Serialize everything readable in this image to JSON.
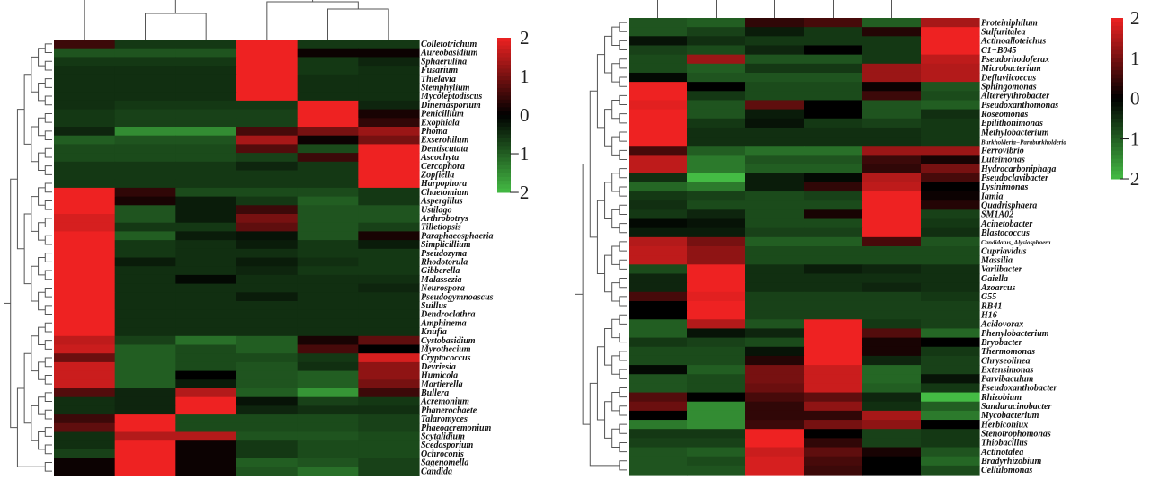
{
  "chart_data": [
    {
      "type": "heatmap",
      "title": "",
      "colorscale": {
        "min": -2,
        "max": 2,
        "low": "#44bb44",
        "mid": "#000000",
        "high": "#ee2222",
        "ticks": [
          "2",
          "1",
          "0",
          "−1",
          "−2"
        ]
      },
      "n_columns": 6,
      "rows": [
        "Colletotrichum",
        "Aureobasidium",
        "Sphaerulina",
        "Fusarium",
        "Thielavia",
        "Stemphylium",
        "Mycoleptodiscus",
        "Dinemasporium",
        "Penicillium",
        "Exophiala",
        "Phoma",
        "Exserohilum",
        "Dentiscutata",
        "Ascochyta",
        "Cercophora",
        "Zopfiella",
        "Harpophora",
        "Chaetomium",
        "Aspergillus",
        "Ustilago",
        "Arthrobotrys",
        "Tilletiopsis",
        "Paraphaeosphaeria",
        "Simplicillium",
        "Pseudozyma",
        "Rhodotorula",
        "Gibberella",
        "Malassezia",
        "Neurospora",
        "Pseudogymnoascus",
        "Suillus",
        "Dendroclathra",
        "Amphinema",
        "Knufia",
        "Cystobasidium",
        "Myrothecium",
        "Cryptococcus",
        "Devriesia",
        "Humicola",
        "Mortierella",
        "Bullera",
        "Acremonium",
        "Phanerochaete",
        "Talaromyces",
        "Phaeoacremonium",
        "Scytalidium",
        "Scedosporium",
        "Ochroconis",
        "Sagenomella",
        "Candida"
      ],
      "values": [
        [
          0.5,
          -0.6,
          -0.6,
          2,
          -0.6,
          -0.6
        ],
        [
          -0.9,
          -0.9,
          -0.9,
          2,
          0.1,
          0.1
        ],
        [
          -0.6,
          -0.6,
          -0.6,
          2,
          -0.6,
          -0.4
        ],
        [
          -0.5,
          -0.5,
          -0.5,
          2,
          -0.6,
          -0.5
        ],
        [
          -0.5,
          -0.5,
          -0.5,
          2,
          -0.5,
          -0.5
        ],
        [
          -0.5,
          -0.5,
          -0.5,
          2,
          -0.5,
          -0.5
        ],
        [
          -0.5,
          -0.5,
          -0.5,
          2,
          -0.5,
          -0.5
        ],
        [
          -0.5,
          -0.6,
          -0.6,
          -0.6,
          2,
          -0.4
        ],
        [
          -0.6,
          -0.7,
          -0.7,
          -0.7,
          2,
          0.2
        ],
        [
          -0.6,
          -0.7,
          -0.7,
          -0.7,
          2,
          0.4
        ],
        [
          -0.4,
          -1.5,
          -1.5,
          0.6,
          1.0,
          1.3
        ],
        [
          -1.0,
          -0.9,
          -0.9,
          1.4,
          0.1,
          1.0
        ],
        [
          -0.8,
          -0.8,
          -0.8,
          0.7,
          -0.8,
          2
        ],
        [
          -0.8,
          -0.8,
          -0.8,
          -0.7,
          0.5,
          2
        ],
        [
          -0.6,
          -0.6,
          -0.6,
          -0.4,
          -0.6,
          2
        ],
        [
          -0.6,
          -0.6,
          -0.6,
          -0.6,
          -0.6,
          2
        ],
        [
          -0.6,
          -0.6,
          -0.6,
          -0.6,
          -0.6,
          2
        ],
        [
          2,
          0.4,
          -0.8,
          -0.8,
          -0.8,
          -0.6
        ],
        [
          2,
          0.2,
          -0.3,
          -0.6,
          -1.0,
          -0.6
        ],
        [
          2,
          -0.9,
          -0.3,
          0.5,
          -0.9,
          -0.9
        ],
        [
          1.8,
          -0.9,
          -0.3,
          1.0,
          -0.9,
          -0.9
        ],
        [
          1.8,
          -0.6,
          -0.6,
          0.8,
          -0.9,
          -0.7
        ],
        [
          2,
          -1.0,
          -0.3,
          -0.2,
          -0.9,
          0.2
        ],
        [
          2,
          -0.6,
          -0.5,
          -0.3,
          -0.6,
          -0.3
        ],
        [
          2,
          -0.6,
          -0.5,
          -0.5,
          -0.6,
          -0.6
        ],
        [
          2,
          -0.3,
          -0.5,
          -0.3,
          -0.5,
          -0.6
        ],
        [
          2,
          -0.5,
          -0.5,
          -0.4,
          -0.6,
          -0.6
        ],
        [
          2,
          -0.5,
          -0.1,
          -0.5,
          -0.5,
          -0.5
        ],
        [
          2,
          -0.5,
          -0.5,
          -0.5,
          -0.5,
          -0.4
        ],
        [
          2,
          -0.5,
          -0.5,
          -0.3,
          -0.5,
          -0.5
        ],
        [
          2,
          -0.5,
          -0.5,
          -0.5,
          -0.5,
          -0.5
        ],
        [
          2,
          -0.5,
          -0.5,
          -0.5,
          -0.5,
          -0.5
        ],
        [
          2,
          -0.5,
          -0.5,
          -0.5,
          -0.5,
          -0.5
        ],
        [
          2,
          -0.5,
          -0.5,
          -0.5,
          -0.5,
          -0.5
        ],
        [
          1.6,
          -0.7,
          -1.2,
          -1.0,
          0.2,
          0.8
        ],
        [
          1.7,
          -1.0,
          -0.8,
          -1.0,
          0.6,
          0.0
        ],
        [
          0.9,
          -1.0,
          -0.8,
          -0.8,
          -0.6,
          1.8
        ],
        [
          1.7,
          -1.0,
          -0.8,
          -0.9,
          -0.5,
          1.2
        ],
        [
          1.7,
          -1.0,
          0.0,
          -0.9,
          -1.0,
          1.2
        ],
        [
          1.7,
          -1.0,
          -0.3,
          -0.9,
          -1.0,
          1.0
        ],
        [
          0.7,
          -0.4,
          1.5,
          -1.0,
          -1.6,
          0.5
        ],
        [
          -0.5,
          -0.4,
          2,
          -0.2,
          -0.7,
          -0.6
        ],
        [
          -0.5,
          -0.4,
          2,
          -0.4,
          -0.5,
          -0.5
        ],
        [
          0.5,
          2,
          -0.8,
          -0.8,
          -0.8,
          -0.7
        ],
        [
          0.8,
          2,
          -0.8,
          -0.8,
          -0.8,
          -0.7
        ],
        [
          -0.5,
          1.5,
          1.5,
          -0.9,
          -0.9,
          -0.8
        ],
        [
          -0.5,
          2,
          0.1,
          -0.6,
          -0.8,
          -0.8
        ],
        [
          -0.7,
          2,
          0.1,
          -0.6,
          -0.8,
          -0.8
        ],
        [
          0.1,
          2,
          0.1,
          -1.0,
          -0.9,
          -0.7
        ],
        [
          0.1,
          2,
          0.1,
          -0.9,
          -1.2,
          -0.7
        ]
      ]
    },
    {
      "type": "heatmap",
      "title": "",
      "colorscale": {
        "min": -2,
        "max": 2,
        "low": "#44bb44",
        "mid": "#000000",
        "high": "#ee2222",
        "ticks": [
          "2",
          "1",
          "0",
          "−1",
          "−2"
        ]
      },
      "n_columns": 6,
      "rows": [
        "Proteiniphilum",
        "Sulfuritalea",
        "Actinoalloteichus",
        "C1−B045",
        "Pseudorhodoferax",
        "Microbacterium",
        "Defluviicoccus",
        "Sphingomonas",
        "Altererythrobacter",
        "Pseudoxanthomonas",
        "Roseomonas",
        "Epilithonimonas",
        "Methylobacterium",
        "Burkholderia−Paraburkholderia",
        "Ferrovibrio",
        "Luteimonas",
        "Hydrocarboniphaga",
        "Pseudoclavibacter",
        "Lysinimonas",
        "Iamia",
        "Quadrisphaera",
        "SM1A02",
        "Acinetobacter",
        "Blastococcus",
        "Candidatus_Alysiosphaera",
        "Cupriavidus",
        "Massilia",
        "Variibacter",
        "Gaiella",
        "Azoarcus",
        "G55",
        "RB41",
        "H16",
        "Acidovorax",
        "Phenylobacterium",
        "Bryobacter",
        "Thermomonas",
        "Chryseolinea",
        "Extensimonas",
        "Parvibaculum",
        "Pseudoxanthobacter",
        "Rhizobium",
        "Sandaracinobacter",
        "Mycobacterium",
        "Herbiconiux",
        "Stenotrophomonas",
        "Thiobacillus",
        "Actinotalea",
        "Bradyrhizobium",
        "Cellulomonas"
      ],
      "values": [
        [
          -0.9,
          -1.0,
          0.4,
          0.6,
          -1.0,
          1.4
        ],
        [
          -0.9,
          -0.7,
          -0.3,
          -0.6,
          0.3,
          2
        ],
        [
          -0.2,
          -0.5,
          -0.6,
          -0.6,
          -0.6,
          2
        ],
        [
          -0.7,
          -0.8,
          -0.4,
          0.0,
          -0.6,
          2
        ],
        [
          -0.8,
          1.3,
          -0.9,
          -0.9,
          -0.6,
          1.6
        ],
        [
          -0.8,
          -1.0,
          -0.6,
          -0.6,
          1.3,
          1.5
        ],
        [
          -0.1,
          -0.9,
          -0.9,
          -0.9,
          1.3,
          1.5
        ],
        [
          2,
          0.0,
          -0.8,
          -0.8,
          0.1,
          -0.9
        ],
        [
          2,
          -0.6,
          -0.8,
          -0.8,
          0.5,
          -0.8
        ],
        [
          1.9,
          -0.9,
          0.8,
          0.0,
          -0.9,
          -1.0
        ],
        [
          2,
          -0.9,
          -0.3,
          0.0,
          -0.9,
          -0.5
        ],
        [
          2,
          -0.6,
          -0.2,
          -0.6,
          -0.7,
          -0.6
        ],
        [
          2,
          -0.5,
          -0.5,
          -0.5,
          -0.5,
          -0.6
        ],
        [
          2,
          -0.5,
          -0.5,
          -0.5,
          -0.5,
          -0.6
        ],
        [
          0.6,
          -1.0,
          -1.2,
          -1.2,
          1.3,
          1.3
        ],
        [
          1.6,
          -1.3,
          -0.9,
          -0.9,
          0.5,
          0.2
        ],
        [
          1.6,
          -1.3,
          -1.0,
          -1.0,
          0.4,
          1.0
        ],
        [
          -0.5,
          -2,
          -0.3,
          -0.1,
          1.5,
          0.6
        ],
        [
          -1.1,
          -1.3,
          -0.3,
          0.4,
          1.6,
          0.0
        ],
        [
          -0.6,
          -0.7,
          -0.8,
          -0.7,
          2,
          0.1
        ],
        [
          -0.5,
          -0.8,
          -0.8,
          -0.8,
          2,
          0.3
        ],
        [
          -0.6,
          -0.4,
          -0.8,
          0.2,
          2,
          -0.7
        ],
        [
          -0.1,
          -0.2,
          -0.8,
          -0.8,
          2,
          -0.6
        ],
        [
          -0.3,
          -0.3,
          -0.7,
          -0.7,
          2,
          -0.5
        ],
        [
          1.5,
          1.0,
          -1.0,
          -1.0,
          0.6,
          -0.9
        ],
        [
          1.6,
          1.2,
          -0.8,
          -0.8,
          -0.8,
          -0.8
        ],
        [
          1.6,
          1.2,
          -0.8,
          -0.8,
          -0.8,
          -0.8
        ],
        [
          -0.8,
          2,
          -0.5,
          -0.3,
          -0.4,
          -0.5
        ],
        [
          -0.4,
          2,
          -0.5,
          -0.5,
          -0.5,
          -0.5
        ],
        [
          -0.4,
          2,
          -0.5,
          -0.5,
          -0.4,
          -0.5
        ],
        [
          0.6,
          1.9,
          -0.7,
          -0.7,
          -0.7,
          -0.6
        ],
        [
          0.0,
          2,
          -0.7,
          -0.7,
          -0.7,
          -0.7
        ],
        [
          0.0,
          2,
          -0.7,
          -0.7,
          -0.7,
          -0.7
        ],
        [
          -1.0,
          1.5,
          -0.9,
          2,
          -0.6,
          -0.7
        ],
        [
          -1.0,
          -0.2,
          -0.4,
          2,
          0.7,
          -1.1
        ],
        [
          -0.6,
          -0.7,
          -0.8,
          2,
          0.2,
          0.0
        ],
        [
          -0.8,
          -0.8,
          -0.2,
          2,
          0.2,
          -0.6
        ],
        [
          -0.8,
          -0.8,
          0.3,
          2,
          -0.4,
          -0.7
        ],
        [
          -0.1,
          -1.0,
          1.0,
          1.7,
          -1.1,
          -0.7
        ],
        [
          -0.9,
          -0.8,
          1.0,
          1.7,
          -1.1,
          -0.2
        ],
        [
          -0.9,
          -0.8,
          0.9,
          1.7,
          -1.0,
          -0.6
        ],
        [
          0.7,
          0.0,
          0.6,
          0.8,
          -0.4,
          -2
        ],
        [
          0.9,
          -1.5,
          0.4,
          1.2,
          -0.5,
          -1.0
        ],
        [
          0.0,
          -1.5,
          0.4,
          0.4,
          1.4,
          -1.3
        ],
        [
          -1.3,
          -1.5,
          0.5,
          1.0,
          1.2,
          0.0
        ],
        [
          -0.6,
          -0.6,
          2,
          0.0,
          -0.7,
          -0.6
        ],
        [
          -0.7,
          -0.7,
          2,
          0.4,
          -0.7,
          -0.6
        ],
        [
          -0.9,
          -1.0,
          1.7,
          0.8,
          0.2,
          -0.9
        ],
        [
          -0.9,
          -0.8,
          1.8,
          0.6,
          0.0,
          -1.1
        ],
        [
          -0.9,
          -0.9,
          1.8,
          0.5,
          0.0,
          -0.8
        ]
      ]
    }
  ]
}
